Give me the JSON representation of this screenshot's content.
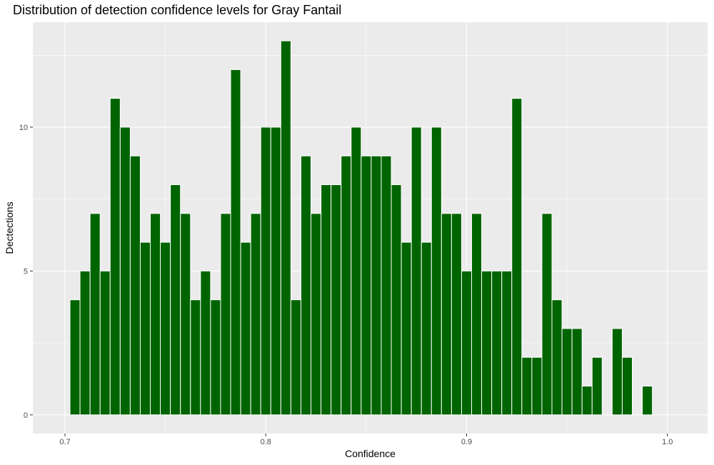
{
  "chart_data": {
    "type": "bar",
    "title": "Distribution of detection confidence levels for Gray Fantail",
    "xlabel": "Confidence",
    "ylabel": "Dectections",
    "xlim": [
      0.684,
      1.02
    ],
    "ylim": [
      -0.65,
      13.65
    ],
    "xticks": [
      0.7,
      0.8,
      0.9,
      1.0
    ],
    "xtick_labels": [
      "0.7",
      "0.8",
      "0.9",
      "1.0"
    ],
    "yticks": [
      0,
      5,
      10
    ],
    "ytick_labels": [
      "0",
      "5",
      "10"
    ],
    "bin_width": 0.005,
    "bin_centers": [
      0.705,
      0.71,
      0.715,
      0.72,
      0.725,
      0.73,
      0.735,
      0.74,
      0.745,
      0.75,
      0.755,
      0.76,
      0.765,
      0.77,
      0.775,
      0.78,
      0.785,
      0.79,
      0.795,
      0.8,
      0.805,
      0.81,
      0.815,
      0.82,
      0.825,
      0.83,
      0.835,
      0.84,
      0.845,
      0.85,
      0.855,
      0.86,
      0.865,
      0.87,
      0.875,
      0.88,
      0.885,
      0.89,
      0.895,
      0.9,
      0.905,
      0.91,
      0.915,
      0.92,
      0.925,
      0.93,
      0.935,
      0.94,
      0.945,
      0.95,
      0.955,
      0.96,
      0.965,
      0.97,
      0.975,
      0.98,
      0.985,
      0.99
    ],
    "values": [
      4,
      5,
      7,
      5,
      11,
      10,
      9,
      6,
      7,
      6,
      8,
      7,
      4,
      5,
      4,
      7,
      12,
      6,
      7,
      10,
      10,
      13,
      4,
      9,
      7,
      8,
      8,
      9,
      10,
      9,
      9,
      9,
      8,
      6,
      10,
      6,
      10,
      7,
      7,
      5,
      7,
      5,
      5,
      5,
      11,
      2,
      2,
      7,
      4,
      3,
      3,
      1,
      2,
      0,
      3,
      2,
      0,
      1
    ],
    "bar_color": "#006400",
    "bar_edge_color": "#ffffff",
    "panel_background": "#ebebeb",
    "grid": true,
    "grid_color": "#ffffff"
  }
}
